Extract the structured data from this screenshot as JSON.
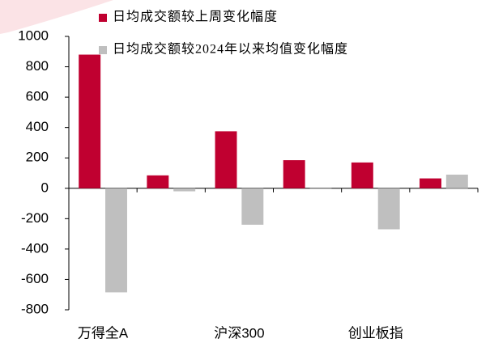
{
  "chart_data": {
    "type": "bar",
    "categories": [
      "万得全A",
      null,
      "沪深300",
      null,
      "创业板指",
      null
    ],
    "series": [
      {
        "name": "日均成交额较上周变化幅度",
        "color": "#c00030",
        "values": [
          880,
          85,
          375,
          185,
          170,
          65
        ]
      },
      {
        "name": "日均成交额较2024年以来均值变化幅度",
        "color": "#bfbfbf",
        "values": [
          -685,
          -20,
          -240,
          -5,
          -270,
          90
        ]
      }
    ],
    "ylim": [
      -800,
      1000
    ],
    "yticks": [
      -800,
      -600,
      -400,
      -200,
      0,
      200,
      400,
      600,
      800,
      1000
    ],
    "grid": false,
    "legend": "top"
  }
}
